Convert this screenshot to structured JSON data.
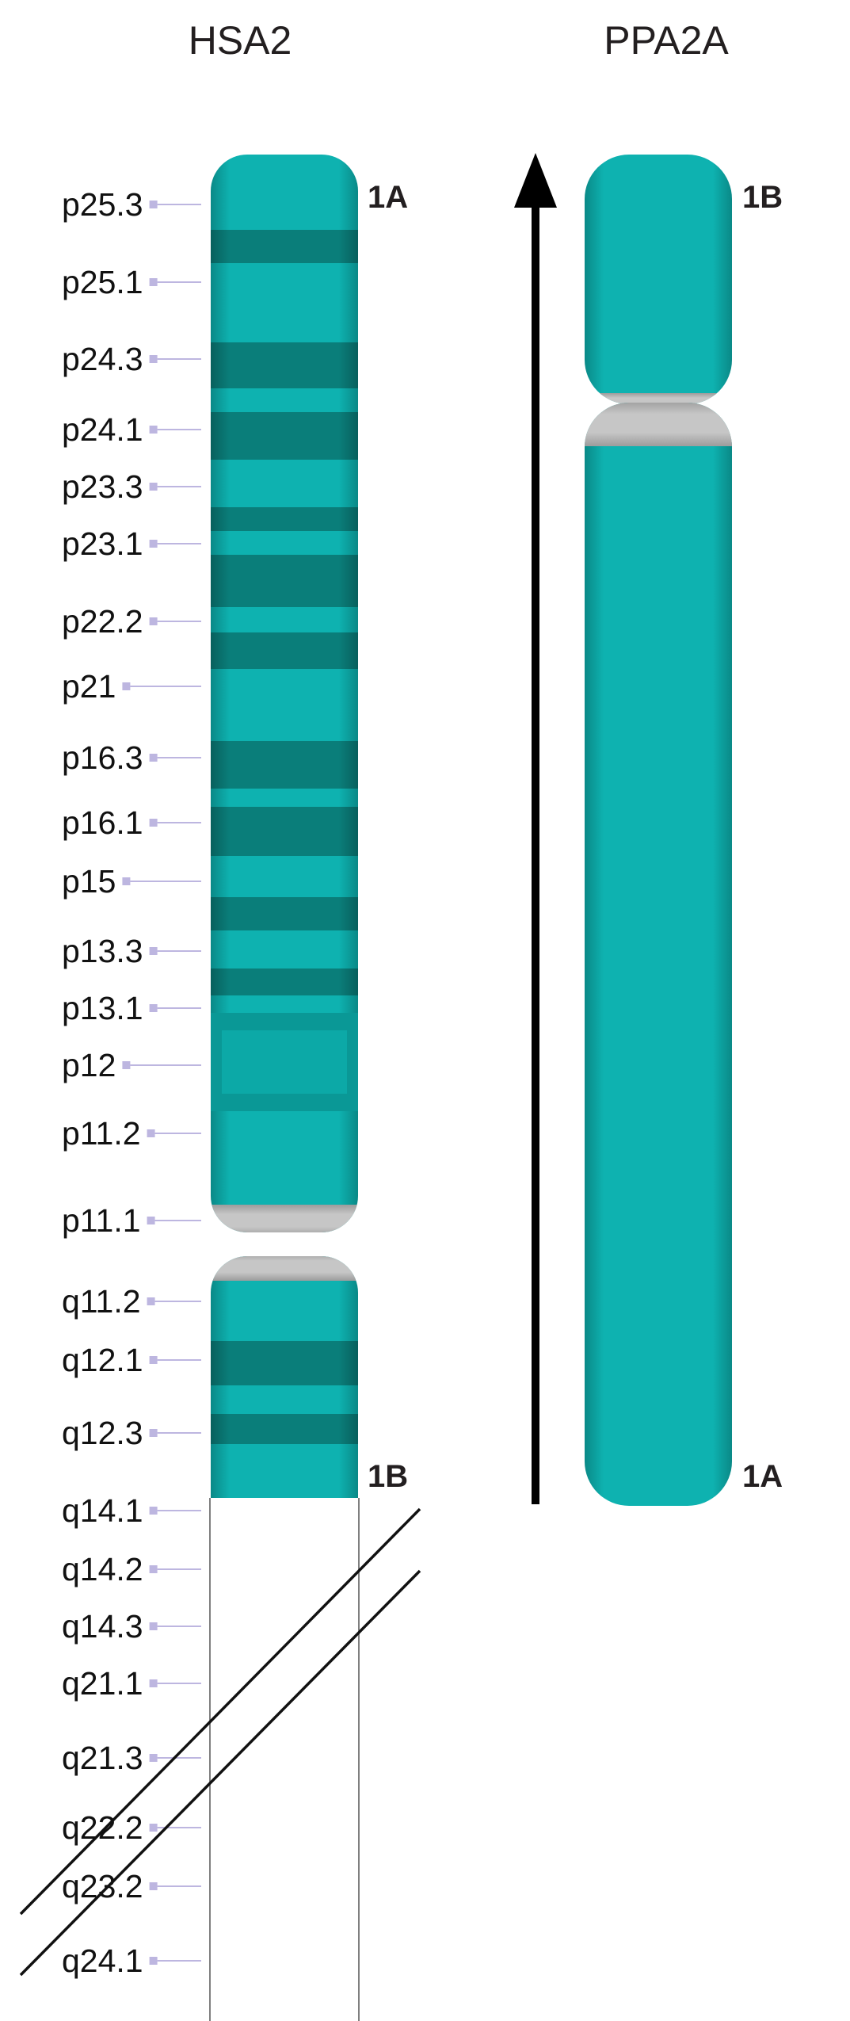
{
  "colors": {
    "band_light": "#0eb2b0",
    "band_dark": "#0a7e7a",
    "centromere": "#c3c3c3",
    "tick": "#bdb6e0",
    "stroke": "#111111"
  },
  "chromosomes": [
    {
      "id": "hsa2",
      "title": "HSA2",
      "top_end_label": "1A",
      "bottom_end_label": "1B",
      "bands": [
        "p25.3",
        "p25.1",
        "p24.3",
        "p24.1",
        "p23.3",
        "p23.1",
        "p22.2",
        "p21",
        "p16.3",
        "p16.1",
        "p15",
        "p13.3",
        "p13.1",
        "p12",
        "p11.2",
        "p11.1",
        "q11.2",
        "q12.1",
        "q12.3",
        "q14.1",
        "q14.2",
        "q14.3",
        "q21.1",
        "q21.3",
        "q22.2",
        "q23.2",
        "q24.1"
      ],
      "truncated": true
    },
    {
      "id": "ppa2a",
      "title": "PPA2A",
      "top_end_label": "1B",
      "bottom_end_label": "1A",
      "orientation_arrow": "up"
    }
  ]
}
